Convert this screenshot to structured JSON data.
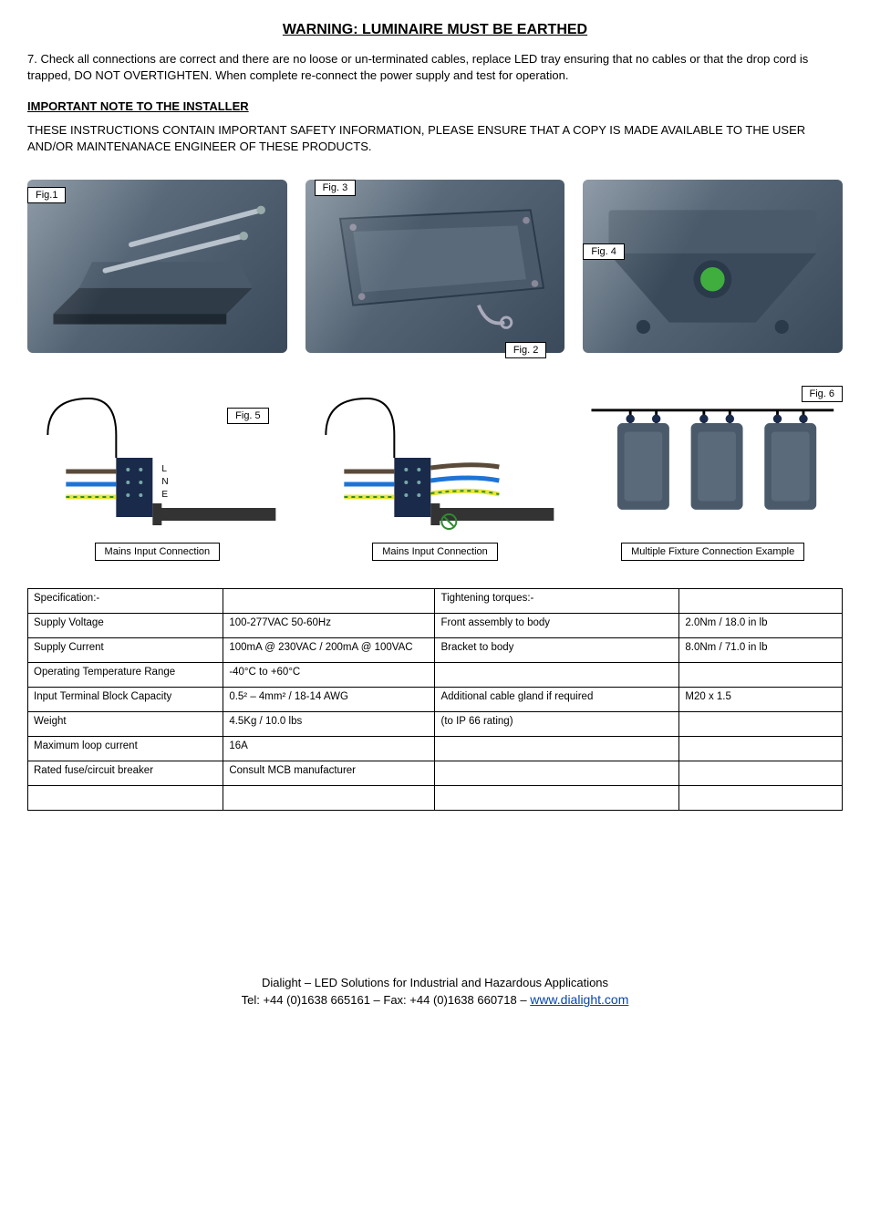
{
  "warning_title": "WARNING: LUMINAIRE MUST BE EARTHED",
  "step7": "7. Check all connections are correct and there are no loose or un-terminated cables, replace LED tray ensuring that no cables or that the drop cord is trapped, DO NOT OVERTIGHTEN. When complete re-connect the power supply and test for operation.",
  "installer_heading": "IMPORTANT NOTE TO THE INSTALLER",
  "installer_note": "THESE INSTRUCTIONS CONTAIN IMPORTANT SAFETY INFORMATION, PLEASE ENSURE THAT A COPY IS MADE AVAILABLE TO THE USER AND/OR MAINTENANACE ENGINEER OF THESE PRODUCTS.",
  "figures": {
    "fig1": "Fig.1",
    "fig2": "Fig. 2",
    "fig3": "Fig. 3",
    "fig4": "Fig. 4",
    "fig5": "Fig. 5",
    "fig6": "Fig. 6"
  },
  "captions": {
    "mains_input_1": "Mains Input Connection",
    "mains_input_2": "Mains Input Connection",
    "multiple_fixture": "Multiple Fixture Connection Example"
  },
  "wiring_labels": {
    "L": "L",
    "N": "N",
    "E": "E"
  },
  "wire_colors": {
    "live": "#5a4a3a",
    "neutral": "#1e74d6",
    "earth": "#e6e63a",
    "earth_stripe": "#2e8b2e"
  },
  "fixture_color": "#4a5a6a",
  "fixture_highlight": "#8a9aaa",
  "accent_green": "#3fae3f",
  "spec_table": {
    "col_widths": [
      "24%",
      "26%",
      "30%",
      "20%"
    ],
    "rows": [
      [
        "Specification:-",
        "",
        "Tightening torques:-",
        ""
      ],
      [
        "Supply Voltage",
        "100-277VAC 50-60Hz",
        "Front assembly to body",
        "2.0Nm / 18.0 in lb"
      ],
      [
        "Supply Current",
        "100mA @ 230VAC / 200mA @ 100VAC",
        "Bracket to body",
        "8.0Nm / 71.0 in lb"
      ],
      [
        "Operating Temperature Range",
        "-40°C to +60°C",
        "",
        ""
      ],
      [
        "Input Terminal Block Capacity",
        "0.5² – 4mm² / 18-14 AWG",
        "Additional cable gland if required",
        "M20 x 1.5"
      ],
      [
        "Weight",
        "4.5Kg / 10.0 lbs",
        "(to IP 66 rating)",
        ""
      ],
      [
        "Maximum loop current",
        "16A",
        "",
        ""
      ],
      [
        "Rated fuse/circuit breaker",
        "Consult MCB manufacturer",
        "",
        ""
      ],
      [
        "",
        "",
        "",
        ""
      ]
    ]
  },
  "footer": {
    "line1": "Dialight – LED Solutions for Industrial and Hazardous Applications",
    "line2_pre": "Tel: +44 (0)1638 665161 – Fax: +44 (0)1638 660718 – ",
    "link": "www.dialight.com"
  }
}
